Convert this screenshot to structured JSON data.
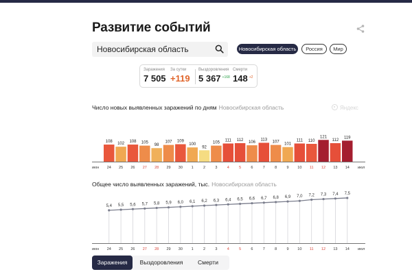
{
  "header": {
    "title": "Развитие событий",
    "share_icon": "share-icon"
  },
  "search": {
    "value": "Новосибирская область",
    "icon": "search-icon"
  },
  "region_pills": [
    {
      "label": "Новосибирская область",
      "active": true
    },
    {
      "label": "Россия",
      "active": false
    },
    {
      "label": "Мир",
      "active": false
    }
  ],
  "stats": {
    "infections_label": "Заражения",
    "infections_value": "7 505",
    "daily_label": "За сутки",
    "daily_value": "+119",
    "recoveries_label": "Выздоровления",
    "recoveries_value": "5 367",
    "recoveries_delta": "+168",
    "deaths_label": "Смерти",
    "deaths_value": "148",
    "deaths_delta": "+2"
  },
  "chart1": {
    "title": "Число новых выявленных заражений по дням",
    "region": "Новосибирская область",
    "watermark": "Яндекс"
  },
  "chart2": {
    "title": "Общее число выявленных заражений, тыс.",
    "region": "Новосибирская область"
  },
  "bottom_tabs": [
    {
      "label": "Заражения",
      "active": true
    },
    {
      "label": "Выздоровления",
      "active": false
    },
    {
      "label": "Смерти",
      "active": false
    }
  ],
  "colors": {
    "navy": "#262a45",
    "weekend_red": "#d9453a",
    "bar_palette": [
      "#f5dc82",
      "#f0a852",
      "#ee8c4a",
      "#e9573c",
      "#a41e2f"
    ]
  },
  "chart_data": [
    {
      "type": "bar",
      "title": "Число новых выявленных заражений по дням",
      "subtitle": "Новосибирская область",
      "month_start_label": "июн",
      "month_end_label": "июл",
      "categories": [
        "24",
        "25",
        "26",
        "27",
        "28",
        "29",
        "30",
        "1",
        "2",
        "3",
        "4",
        "5",
        "6",
        "7",
        "8",
        "9",
        "10",
        "11",
        "12",
        "13",
        "14"
      ],
      "weekend": [
        false,
        false,
        false,
        true,
        true,
        false,
        false,
        false,
        false,
        false,
        true,
        true,
        false,
        false,
        false,
        false,
        false,
        true,
        true,
        false,
        false
      ],
      "values": [
        108,
        102,
        108,
        105,
        98,
        107,
        109,
        100,
        92,
        105,
        111,
        112,
        106,
        113,
        107,
        101,
        111,
        110,
        121,
        112,
        119
      ],
      "colors": [
        "#e9573c",
        "#f0a852",
        "#e9573c",
        "#ee8c4a",
        "#f0b05a",
        "#ee8c4a",
        "#e9573c",
        "#f0a852",
        "#f5dc82",
        "#ee8c4a",
        "#e64f39",
        "#e64f39",
        "#ee8c4a",
        "#e64f39",
        "#ee8c4a",
        "#f0a852",
        "#e64f39",
        "#e9573c",
        "#a41e2f",
        "#e64f39",
        "#a41e2f"
      ],
      "xlabel": "",
      "ylabel": "",
      "grid": false
    },
    {
      "type": "line",
      "title": "Общее число выявленных заражений, тыс.",
      "subtitle": "Новосибирская область",
      "month_start_label": "июн",
      "month_end_label": "июл",
      "categories": [
        "24",
        "25",
        "26",
        "27",
        "28",
        "29",
        "30",
        "1",
        "2",
        "3",
        "4",
        "5",
        "6",
        "7",
        "8",
        "9",
        "10",
        "11",
        "12",
        "13",
        "14"
      ],
      "values": [
        5.4,
        5.5,
        5.6,
        5.7,
        5.8,
        5.9,
        6.0,
        6.1,
        6.2,
        6.3,
        6.4,
        6.5,
        6.6,
        6.7,
        6.8,
        6.9,
        7.0,
        7.2,
        7.3,
        7.4,
        7.5
      ],
      "value_labels": [
        "5,4",
        "5,5",
        "5,6",
        "5,7",
        "5,8",
        "5,9",
        "6,0",
        "6,1",
        "6,2",
        "6,3",
        "6,4",
        "6,5",
        "6,6",
        "6,7",
        "6,8",
        "6,9",
        "7,0",
        "7,2",
        "7,3",
        "7,4",
        "7,5"
      ],
      "xlabel": "",
      "ylabel": "тыс.",
      "grid": "vertical drop lines"
    }
  ]
}
